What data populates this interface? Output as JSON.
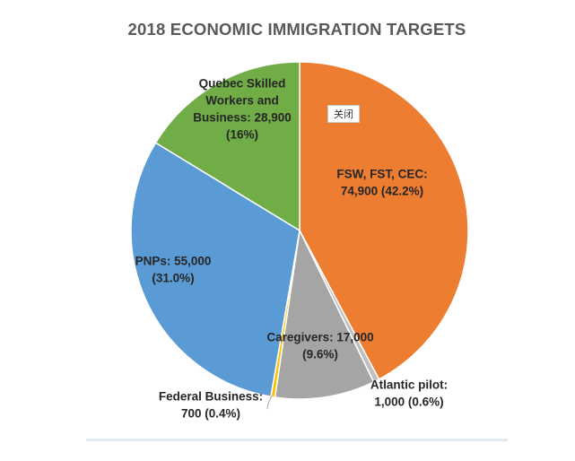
{
  "chart_data": {
    "type": "pie",
    "title": "2018 ECONOMIC IMMIGRATION TARGETS",
    "slices": [
      {
        "name": "FSW, FST, CEC",
        "value": 74900,
        "percent": 42.2,
        "color": "#ed7d31",
        "label_lines": [
          "FSW, FST, CEC:",
          "74,900 (42.2%)"
        ]
      },
      {
        "name": "Atlantic pilot",
        "value": 1000,
        "percent": 0.6,
        "color": "#bfbfbf",
        "label_lines": [
          "Atlantic pilot:",
          "1,000 (0.6%)"
        ]
      },
      {
        "name": "Caregivers",
        "value": 17000,
        "percent": 9.6,
        "color": "#a5a5a5",
        "label_lines": [
          "Caregivers: 17,000",
          "(9.6%)"
        ]
      },
      {
        "name": "Federal Business",
        "value": 700,
        "percent": 0.4,
        "color": "#ffc000",
        "label_lines": [
          "Federal Business:",
          "700 (0.4%)"
        ]
      },
      {
        "name": "PNPs",
        "value": 55000,
        "percent": 31.0,
        "color": "#5b9bd5",
        "label_lines": [
          "PNPs: 55,000",
          "(31.0%)"
        ]
      },
      {
        "name": "Quebec Skilled Workers and Business",
        "value": 28900,
        "percent": 16,
        "color": "#70ad47",
        "label_lines": [
          "Quebec Skilled",
          "Workers and",
          "Business: 28,900",
          "(16%)"
        ]
      }
    ]
  },
  "overlay": {
    "close_label": "关闭"
  }
}
